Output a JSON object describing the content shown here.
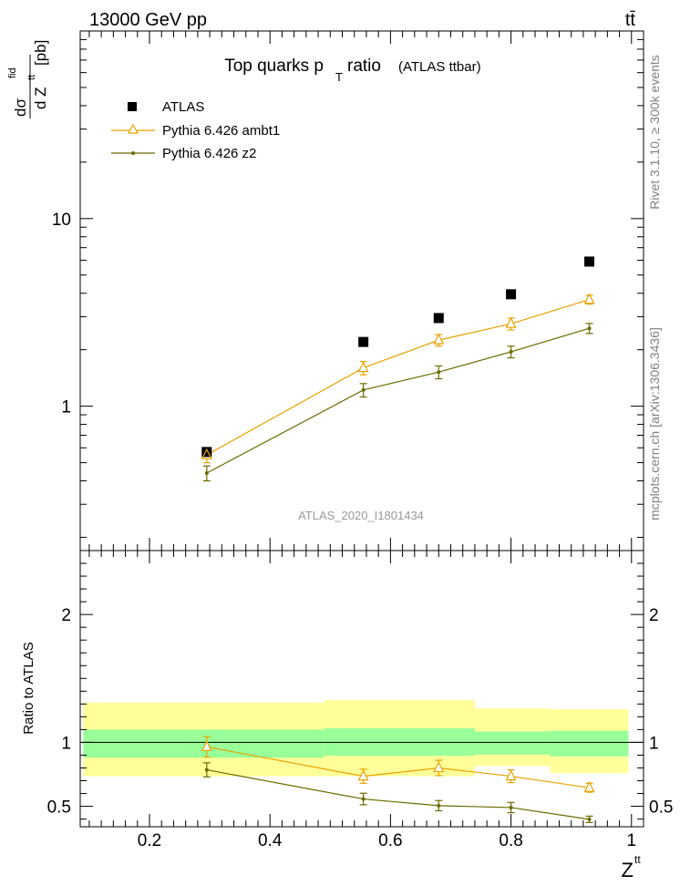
{
  "header": {
    "process": "13000 GeV pp",
    "label": "tt̄",
    "side_rivet": "Rivet 3.1.10, ≥ 300k events",
    "side_site": "mcplots.cern.ch [arXiv:1306.3436]"
  },
  "colors": {
    "atlas": "#000000",
    "ambt1": "#e8a200",
    "z2": "#6b6b00",
    "band_inner": "#99ff99",
    "band_outer": "#ffff99",
    "watermark": "#999999"
  },
  "chart_data": [
    {
      "type": "scatter",
      "panel": "main",
      "title": "Top quarks p",
      "title_sub": "T",
      "title_rest": "ratio",
      "title_paren": "(ATLAS ttbar)",
      "ylabel_num": "dσ",
      "ylabel_sup": "fid",
      "ylabel_den": "d Z",
      "ylabel_den_sup": "tt",
      "ylabel_unit": "[pb]",
      "yscale": "log",
      "ylim": [
        0.17,
        100
      ],
      "xlim": [
        0.085,
        1.02
      ],
      "y_tick_labels": [
        "1",
        "10"
      ],
      "watermark": "ATLAS_2020_I1801434",
      "legend_position": "top-left",
      "x": [
        0.295,
        0.555,
        0.68,
        0.8,
        0.93
      ],
      "series": [
        {
          "name": "ATLAS",
          "marker": "square",
          "values": [
            0.57,
            2.2,
            2.95,
            3.95,
            5.9
          ]
        },
        {
          "name": "Pythia 6.426 ambt1",
          "marker": "triangle",
          "values": [
            0.55,
            1.6,
            2.25,
            2.75,
            3.7
          ],
          "err": [
            0.05,
            0.13,
            0.16,
            0.2,
            0.2
          ]
        },
        {
          "name": "Pythia 6.426 z2",
          "marker": "dot",
          "values": [
            0.44,
            1.22,
            1.52,
            1.95,
            2.6
          ],
          "err": [
            0.04,
            0.1,
            0.12,
            0.14,
            0.16
          ]
        }
      ]
    },
    {
      "type": "line",
      "panel": "ratio",
      "ylabel": "Ratio to ATLAS",
      "xlabel": "Z",
      "xlabel_sup": "tt",
      "ylim": [
        0.34,
        2.5
      ],
      "xlim": [
        0.085,
        1.02
      ],
      "x_ticks": [
        0.2,
        0.4,
        0.6,
        0.8,
        1.0
      ],
      "x_tick_labels": [
        "0.2",
        "0.4",
        "0.6",
        "0.8",
        "1"
      ],
      "y_ticks": [
        0.5,
        1,
        2
      ],
      "y_tick_labels": [
        "0.5",
        "1",
        "2"
      ],
      "bands": [
        {
          "x_range": [
            0.09,
            0.49
          ],
          "inner": [
            0.88,
            1.1
          ],
          "outer": [
            0.735,
            1.31
          ]
        },
        {
          "x_range": [
            0.49,
            0.74
          ],
          "inner": [
            0.895,
            1.11
          ],
          "outer": [
            0.735,
            1.33
          ]
        },
        {
          "x_range": [
            0.74,
            0.865
          ],
          "inner": [
            0.905,
            1.085
          ],
          "outer": [
            0.815,
            1.265
          ]
        },
        {
          "x_range": [
            0.865,
            0.995
          ],
          "inner": [
            0.89,
            1.09
          ],
          "outer": [
            0.76,
            1.26
          ]
        }
      ],
      "x": [
        0.295,
        0.555,
        0.68,
        0.8,
        0.93
      ],
      "series": [
        {
          "name": "Pythia 6.426 ambt1",
          "values": [
            0.965,
            0.735,
            0.8,
            0.735,
            0.645
          ],
          "err": [
            0.08,
            0.055,
            0.06,
            0.05,
            0.035
          ]
        },
        {
          "name": "Pythia 6.426 z2",
          "values": [
            0.785,
            0.557,
            0.505,
            0.49,
            0.398
          ],
          "err": [
            0.055,
            0.045,
            0.04,
            0.04,
            0.025
          ]
        }
      ]
    }
  ]
}
